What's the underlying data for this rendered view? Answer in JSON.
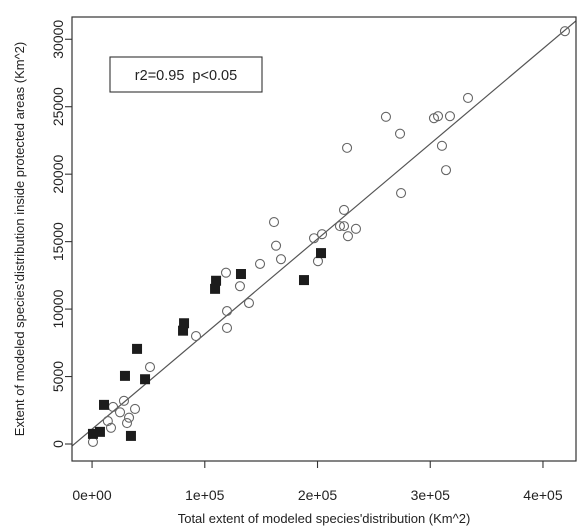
{
  "chart_data": {
    "type": "scatter",
    "xlabel": "Total extent of modeled species'distribution (Km^2)",
    "ylabel": "Extent of modeled species'distribution inside protected areas (Km^2)",
    "xlim": [
      -17800,
      429300
    ],
    "ylim": [
      -1260,
      31650
    ],
    "grid": false,
    "x_ticks": [
      {
        "value": 0,
        "label": "0e+00"
      },
      {
        "value": 100000,
        "label": "1e+05"
      },
      {
        "value": 200000,
        "label": "2e+05"
      },
      {
        "value": 300000,
        "label": "3e+05"
      },
      {
        "value": 400000,
        "label": "4e+05"
      }
    ],
    "y_ticks": [
      {
        "value": 0,
        "label": "0"
      },
      {
        "value": 5000,
        "label": "5000"
      },
      {
        "value": 10000,
        "label": "10000"
      },
      {
        "value": 15000,
        "label": "15000"
      },
      {
        "value": 20000,
        "label": "20000"
      },
      {
        "value": 25000,
        "label": "25000"
      },
      {
        "value": 30000,
        "label": "30000"
      }
    ],
    "annotation": {
      "text": "r2=0.95  p<0.05",
      "boxed": true,
      "placement": "top-left"
    },
    "fit_line": {
      "intercept": 1100,
      "slope": 0.0705,
      "color": "#555555"
    },
    "series": [
      {
        "marker": "open-circle",
        "color": "#666666",
        "x": [
          800,
          14000,
          16800,
          18600,
          24800,
          28300,
          31000,
          32800,
          38100,
          51400,
          92200,
          118800,
          119700,
          119700,
          131200,
          139200,
          149000,
          161400,
          163200,
          167600,
          196900,
          200400,
          204000,
          219900,
          223500,
          223500,
          226200,
          227000,
          234100,
          260700,
          273200,
          274100,
          303300,
          306900,
          310400,
          314000,
          317500,
          333500,
          419500
        ],
        "y": [
          150,
          1700,
          1200,
          2750,
          2350,
          3200,
          1550,
          1950,
          2600,
          5700,
          8000,
          12700,
          9850,
          8600,
          11700,
          10450,
          13350,
          16450,
          14700,
          13700,
          15250,
          13550,
          15550,
          16150,
          17350,
          16150,
          21950,
          15400,
          15950,
          24250,
          23000,
          18600,
          24150,
          24300,
          22100,
          20300,
          24300,
          25650,
          30600
        ]
      },
      {
        "marker": "filled-square",
        "color": "#1c1c1c",
        "x": [
          800,
          7000,
          10600,
          29200,
          34500,
          39900,
          47000,
          80700,
          81600,
          109100,
          110000,
          132100,
          188000,
          203100
        ],
        "y": [
          750,
          900,
          2900,
          5050,
          600,
          7050,
          4800,
          8400,
          8950,
          11500,
          12100,
          12600,
          12150,
          14150
        ]
      }
    ]
  },
  "colors": {
    "frame": "#333333",
    "text": "#222222",
    "background": "#ffffff"
  }
}
